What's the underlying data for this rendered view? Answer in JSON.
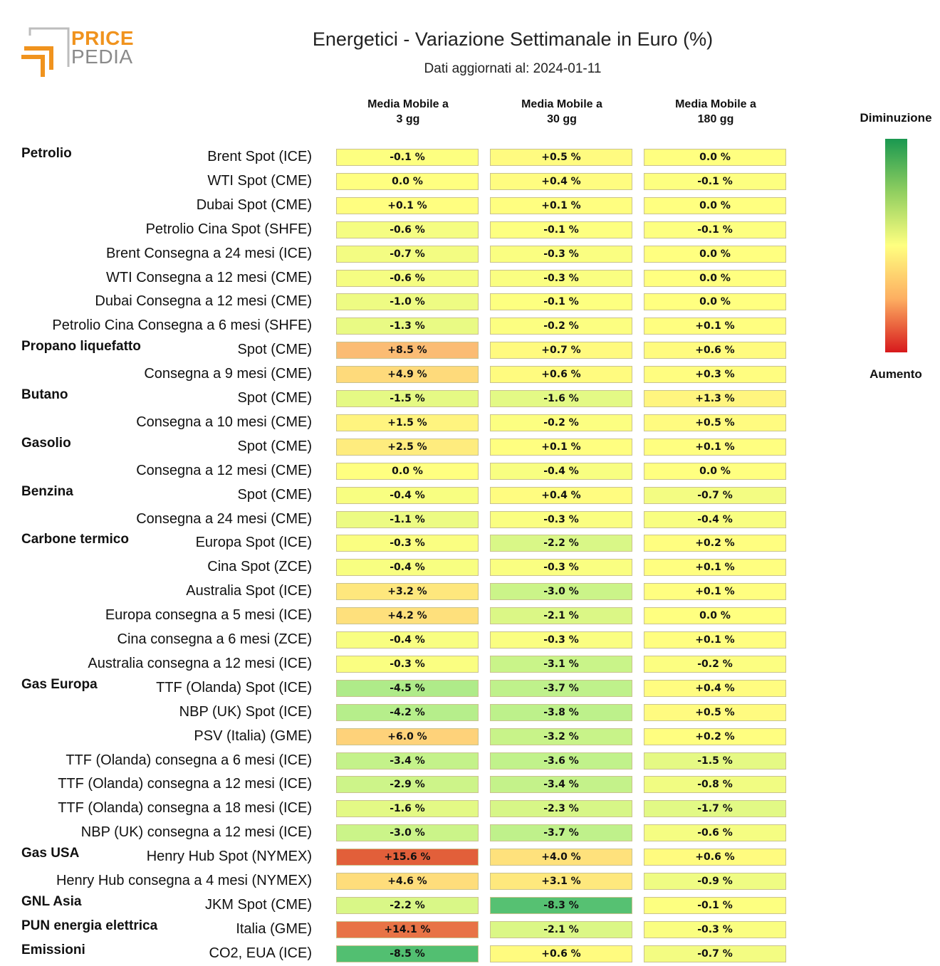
{
  "logo": {
    "line1": "PRICE",
    "line2": "PEDIA"
  },
  "title": "Energetici - Variazione Settimanale in Euro (%)",
  "subtitle": "Dati aggiornati al: 2024-01-11",
  "legend": {
    "top": "Diminuzione",
    "bottom": "Aumento",
    "colors": [
      "#1a9850",
      "#91cf60",
      "#ffff80",
      "#fdae61",
      "#d7191c"
    ]
  },
  "chart_data": {
    "type": "heatmap",
    "title": "Energetici - Variazione Settimanale in Euro (%)",
    "columns": [
      "Media Mobile a\n3 gg",
      "Media Mobile a\n30 gg",
      "Media Mobile a\n180 gg"
    ],
    "rows": [
      {
        "group": "Petrolio",
        "label": "Brent Spot (ICE)",
        "values": [
          -0.1,
          0.5,
          0.0
        ]
      },
      {
        "group": "",
        "label": "WTI Spot (CME)",
        "values": [
          0.0,
          0.4,
          -0.1
        ]
      },
      {
        "group": "",
        "label": "Dubai Spot (CME)",
        "values": [
          0.1,
          0.1,
          0.0
        ]
      },
      {
        "group": "",
        "label": "Petrolio Cina Spot (SHFE)",
        "values": [
          -0.6,
          -0.1,
          -0.1
        ]
      },
      {
        "group": "",
        "label": "Brent Consegna a 24 mesi (ICE)",
        "values": [
          -0.7,
          -0.3,
          0.0
        ]
      },
      {
        "group": "",
        "label": "WTI Consegna a 12 mesi (CME)",
        "values": [
          -0.6,
          -0.3,
          0.0
        ]
      },
      {
        "group": "",
        "label": "Dubai Consegna a 12 mesi (CME)",
        "values": [
          -1.0,
          -0.1,
          0.0
        ]
      },
      {
        "group": "",
        "label": "Petrolio Cina Consegna a 6 mesi (SHFE)",
        "values": [
          -1.3,
          -0.2,
          0.1
        ]
      },
      {
        "group": "Propano liquefatto",
        "label": "Spot (CME)",
        "values": [
          8.5,
          0.7,
          0.6
        ]
      },
      {
        "group": "",
        "label": "Consegna a 9 mesi (CME)",
        "values": [
          4.9,
          0.6,
          0.3
        ]
      },
      {
        "group": "Butano",
        "label": "Spot (CME)",
        "values": [
          -1.5,
          -1.6,
          1.3
        ]
      },
      {
        "group": "",
        "label": "Consegna a 10 mesi (CME)",
        "values": [
          1.5,
          -0.2,
          0.5
        ]
      },
      {
        "group": "Gasolio",
        "label": "Spot (CME)",
        "values": [
          2.5,
          0.1,
          0.1
        ]
      },
      {
        "group": "",
        "label": "Consegna a 12 mesi (CME)",
        "values": [
          0.0,
          -0.4,
          0.0
        ]
      },
      {
        "group": "Benzina",
        "label": "Spot (CME)",
        "values": [
          -0.4,
          0.4,
          -0.7
        ]
      },
      {
        "group": "",
        "label": "Consegna a 24 mesi (CME)",
        "values": [
          -1.1,
          -0.3,
          -0.4
        ]
      },
      {
        "group": "Carbone termico",
        "label": "Europa Spot (ICE)",
        "values": [
          -0.3,
          -2.2,
          0.2
        ]
      },
      {
        "group": "",
        "label": "Cina Spot (ZCE)",
        "values": [
          -0.4,
          -0.3,
          0.1
        ]
      },
      {
        "group": "",
        "label": "Australia Spot (ICE)",
        "values": [
          3.2,
          -3.0,
          0.1
        ]
      },
      {
        "group": "",
        "label": "Europa consegna a 5 mesi (ICE)",
        "values": [
          4.2,
          -2.1,
          0.0
        ]
      },
      {
        "group": "",
        "label": "Cina consegna a 6 mesi (ZCE)",
        "values": [
          -0.4,
          -0.3,
          0.1
        ]
      },
      {
        "group": "",
        "label": "Australia consegna a 12 mesi (ICE)",
        "values": [
          -0.3,
          -3.1,
          -0.2
        ]
      },
      {
        "group": "Gas Europa",
        "label": "TTF (Olanda) Spot (ICE)",
        "values": [
          -4.5,
          -3.7,
          0.4
        ]
      },
      {
        "group": "",
        "label": "NBP (UK) Spot (ICE)",
        "values": [
          -4.2,
          -3.8,
          0.5
        ]
      },
      {
        "group": "",
        "label": "PSV (Italia) (GME)",
        "values": [
          6.0,
          -3.2,
          0.2
        ]
      },
      {
        "group": "",
        "label": "TTF (Olanda) consegna a 6 mesi (ICE)",
        "values": [
          -3.4,
          -3.6,
          -1.5
        ]
      },
      {
        "group": "",
        "label": "TTF (Olanda) consegna a 12 mesi (ICE)",
        "values": [
          -2.9,
          -3.4,
          -0.8
        ]
      },
      {
        "group": "",
        "label": "TTF (Olanda) consegna a 18 mesi (ICE)",
        "values": [
          -1.6,
          -2.3,
          -1.7
        ]
      },
      {
        "group": "",
        "label": "NBP (UK) consegna a 12 mesi (ICE)",
        "values": [
          -3.0,
          -3.7,
          -0.6
        ]
      },
      {
        "group": "Gas USA",
        "label": "Henry Hub Spot (NYMEX)",
        "values": [
          15.6,
          4.0,
          0.6
        ]
      },
      {
        "group": "",
        "label": "Henry Hub consegna a 4 mesi (NYMEX)",
        "values": [
          4.6,
          3.1,
          -0.9
        ]
      },
      {
        "group": "GNL Asia",
        "label": "JKM Spot (CME)",
        "values": [
          -2.2,
          -8.3,
          -0.1
        ]
      },
      {
        "group": "PUN energia elettrica",
        "label": "Italia (GME)",
        "values": [
          14.1,
          -2.1,
          -0.3
        ]
      },
      {
        "group": "Emissioni",
        "label": "CO2, EUA (ICE)",
        "values": [
          -8.5,
          0.6,
          -0.7
        ]
      }
    ]
  }
}
